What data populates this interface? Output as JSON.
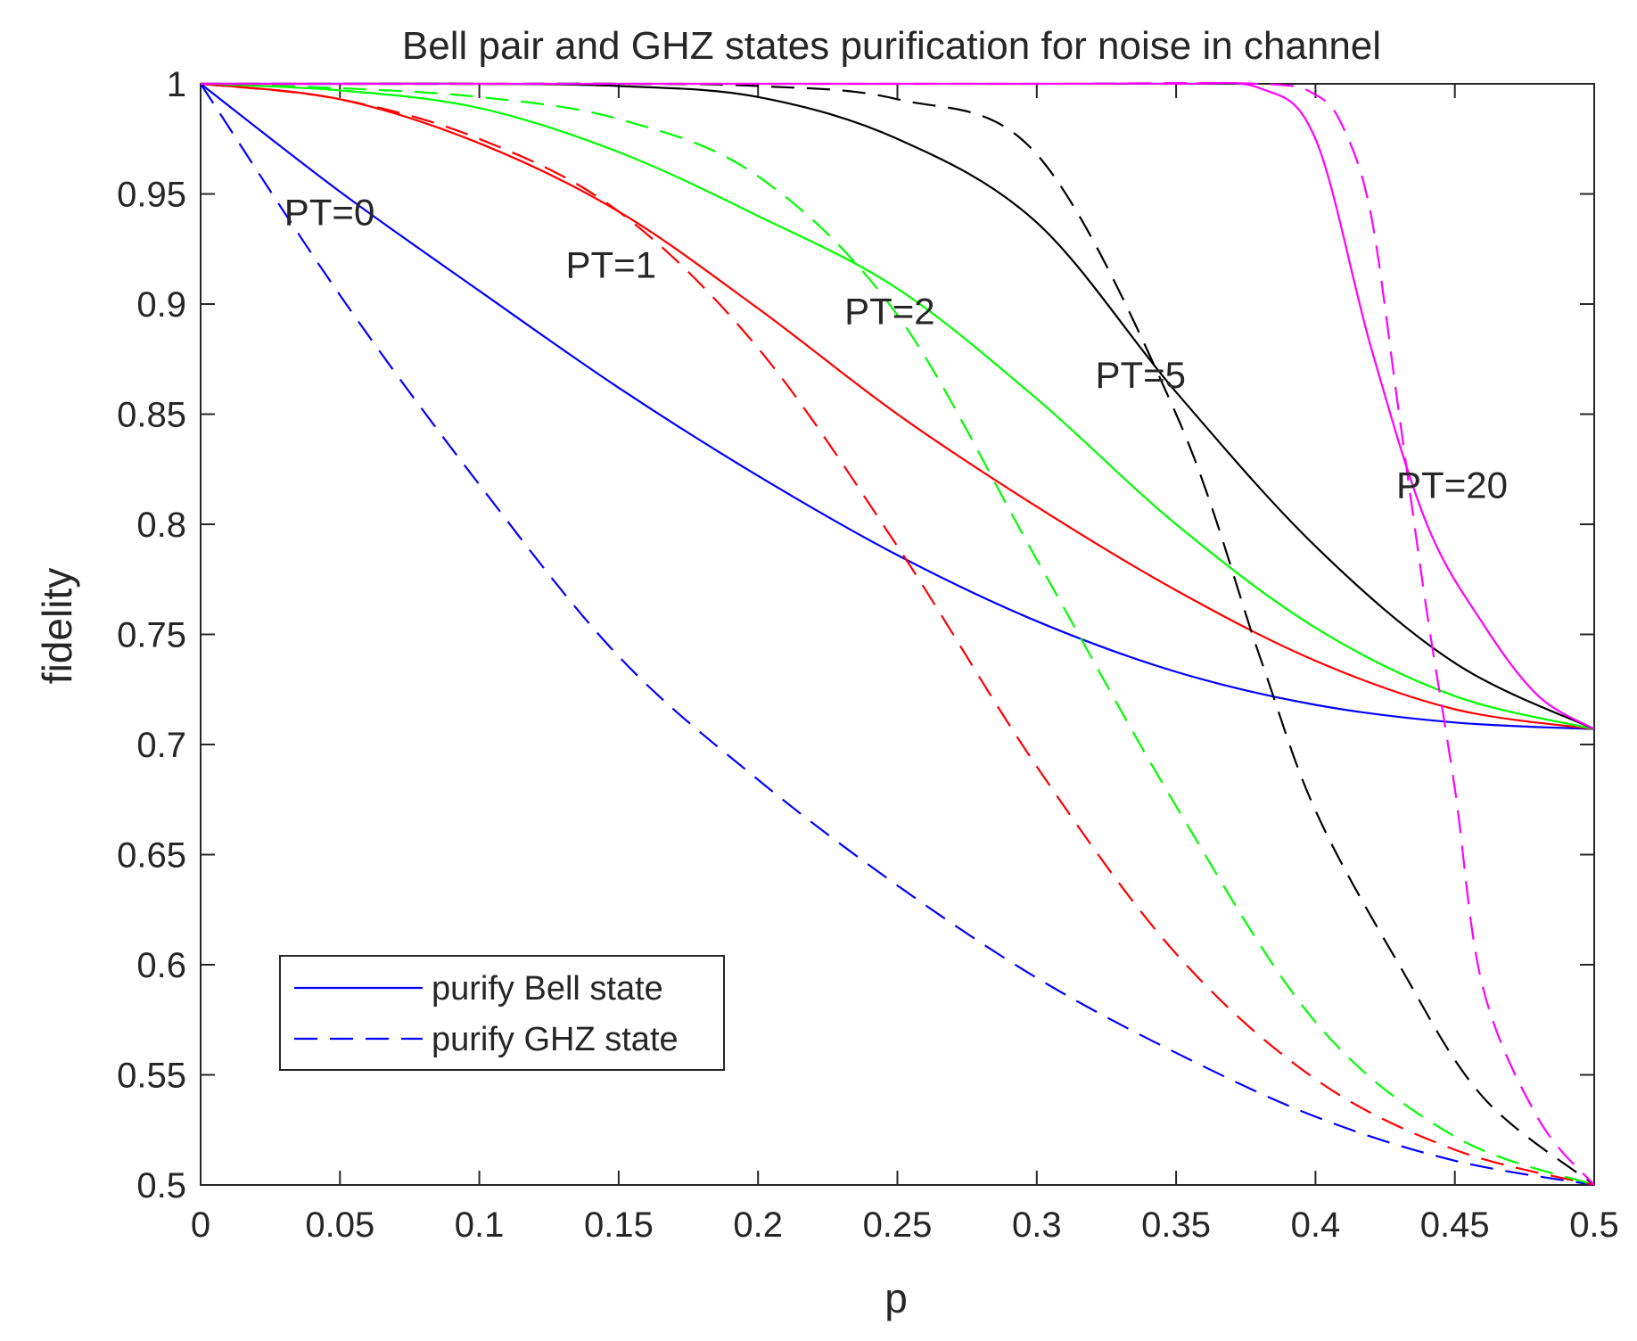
{
  "chart_data": {
    "type": "line",
    "title": "Bell pair and GHZ states purification for noise in channel",
    "xlabel": "p",
    "ylabel": "fidelity",
    "xlim": [
      0,
      0.5
    ],
    "ylim": [
      0.5,
      1
    ],
    "xticks": [
      0,
      0.05,
      0.1,
      0.15,
      0.2,
      0.25,
      0.3,
      0.35,
      0.4,
      0.45,
      0.5
    ],
    "xtick_labels": [
      "0",
      "0.05",
      "0.1",
      "0.15",
      "0.2",
      "0.25",
      "0.3",
      "0.35",
      "0.4",
      "0.45",
      "0.5"
    ],
    "yticks": [
      0.5,
      0.55,
      0.6,
      0.65,
      0.7,
      0.75,
      0.8,
      0.85,
      0.9,
      0.95,
      1
    ],
    "ytick_labels": [
      "0.5",
      "0.55",
      "0.6",
      "0.65",
      "0.7",
      "0.75",
      "0.8",
      "0.85",
      "0.9",
      "0.95",
      "1"
    ],
    "grid": false,
    "legend": {
      "location": "bottom-left",
      "entries": [
        {
          "label": "purify Bell state",
          "color": "#0000ff",
          "style": "solid"
        },
        {
          "label": "purify GHZ state",
          "color": "#0000ff",
          "style": "dashed"
        }
      ]
    },
    "annotations": [
      {
        "text": "PT=0",
        "x": 0.03,
        "y": 0.942
      },
      {
        "text": "PT=1",
        "x": 0.131,
        "y": 0.918
      },
      {
        "text": "PT=2",
        "x": 0.231,
        "y": 0.897
      },
      {
        "text": "PT=5",
        "x": 0.321,
        "y": 0.868
      },
      {
        "text": "PT=20",
        "x": 0.429,
        "y": 0.818
      }
    ],
    "series": [
      {
        "name": "Bell PT=0",
        "color": "#0000ff",
        "style": "solid",
        "x": [
          0,
          0.05,
          0.1,
          0.15,
          0.2,
          0.25,
          0.3,
          0.35,
          0.4,
          0.45,
          0.5
        ],
        "y": [
          1,
          0.951,
          0.906,
          0.862,
          0.822,
          0.786,
          0.756,
          0.733,
          0.718,
          0.71,
          0.707
        ]
      },
      {
        "name": "Bell PT=1",
        "color": "#ff0000",
        "style": "solid",
        "x": [
          0,
          0.05,
          0.1,
          0.15,
          0.2,
          0.25,
          0.3,
          0.35,
          0.4,
          0.45,
          0.5
        ],
        "y": [
          1,
          0.993,
          0.973,
          0.942,
          0.898,
          0.85,
          0.808,
          0.77,
          0.738,
          0.716,
          0.707
        ]
      },
      {
        "name": "Bell PT=2",
        "color": "#00ff00",
        "style": "solid",
        "x": [
          0,
          0.05,
          0.1,
          0.15,
          0.2,
          0.25,
          0.3,
          0.35,
          0.4,
          0.45,
          0.5
        ],
        "y": [
          1,
          0.997,
          0.989,
          0.969,
          0.94,
          0.907,
          0.857,
          0.8,
          0.753,
          0.722,
          0.707
        ]
      },
      {
        "name": "Bell PT=5",
        "color": "#000000",
        "style": "solid",
        "x": [
          0,
          0.05,
          0.1,
          0.15,
          0.2,
          0.25,
          0.3,
          0.35,
          0.4,
          0.45,
          0.5
        ],
        "y": [
          1,
          1,
          1,
          0.999,
          0.994,
          0.975,
          0.937,
          0.86,
          0.79,
          0.737,
          0.707
        ]
      },
      {
        "name": "Bell PT=20",
        "color": "#ff00ff",
        "style": "solid",
        "x": [
          0,
          0.05,
          0.1,
          0.15,
          0.2,
          0.25,
          0.3,
          0.35,
          0.38,
          0.4,
          0.42,
          0.44,
          0.46,
          0.48,
          0.5
        ],
        "y": [
          1,
          1,
          1,
          1,
          1,
          1,
          1,
          1,
          0.998,
          0.975,
          0.88,
          0.8,
          0.755,
          0.722,
          0.707
        ]
      },
      {
        "name": "GHZ PT=0",
        "color": "#0000ff",
        "style": "dashed",
        "x": [
          0,
          0.05,
          0.1,
          0.15,
          0.2,
          0.25,
          0.3,
          0.35,
          0.4,
          0.45,
          0.5
        ],
        "y": [
          1,
          0.904,
          0.818,
          0.74,
          0.684,
          0.636,
          0.594,
          0.56,
          0.531,
          0.511,
          0.5
        ]
      },
      {
        "name": "GHZ PT=1",
        "color": "#ff0000",
        "style": "dashed",
        "x": [
          0,
          0.05,
          0.1,
          0.15,
          0.2,
          0.25,
          0.3,
          0.35,
          0.4,
          0.45,
          0.5
        ],
        "y": [
          1,
          0.993,
          0.975,
          0.942,
          0.88,
          0.79,
          0.69,
          0.605,
          0.548,
          0.516,
          0.5
        ]
      },
      {
        "name": "GHZ PT=2",
        "color": "#00ff00",
        "style": "dashed",
        "x": [
          0,
          0.05,
          0.1,
          0.15,
          0.2,
          0.25,
          0.3,
          0.35,
          0.4,
          0.45,
          0.5
        ],
        "y": [
          1,
          0.998,
          0.994,
          0.984,
          0.958,
          0.895,
          0.784,
          0.672,
          0.574,
          0.522,
          0.5
        ]
      },
      {
        "name": "GHZ PT=5",
        "color": "#000000",
        "style": "dashed",
        "x": [
          0,
          0.05,
          0.1,
          0.15,
          0.2,
          0.25,
          0.3,
          0.35,
          0.38,
          0.4,
          0.43,
          0.46,
          0.5
        ],
        "y": [
          1,
          1,
          1,
          1,
          0.999,
          0.993,
          0.968,
          0.85,
          0.74,
          0.67,
          0.6,
          0.54,
          0.5
        ]
      },
      {
        "name": "GHZ PT=20",
        "color": "#ff00ff",
        "style": "dashed",
        "x": [
          0,
          0.1,
          0.2,
          0.3,
          0.38,
          0.4,
          0.41,
          0.42,
          0.43,
          0.44,
          0.45,
          0.46,
          0.48,
          0.5
        ],
        "y": [
          1,
          1,
          1,
          1,
          1,
          0.995,
          0.98,
          0.94,
          0.85,
          0.76,
          0.68,
          0.59,
          0.53,
          0.5
        ]
      }
    ]
  }
}
